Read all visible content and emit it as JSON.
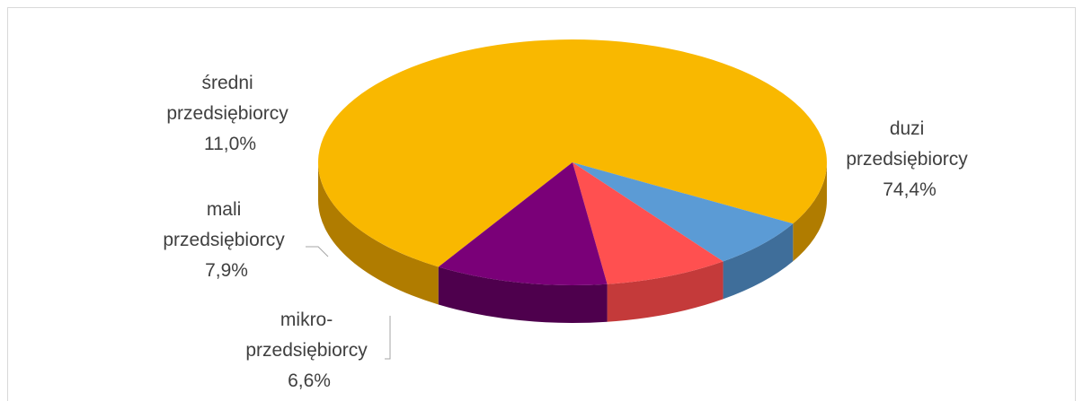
{
  "chart_data": {
    "type": "pie",
    "title": "",
    "style": "3d",
    "categories": [
      "duzi przedsiębiorcy",
      "mikro-przedsiębiorcy",
      "mali przedsiębiorcy",
      "średni przedsiębiorcy"
    ],
    "values": [
      74.4,
      6.6,
      7.9,
      11.0
    ],
    "labels": [
      {
        "lines": [
          "duzi",
          "przedsiębiorcy"
        ],
        "value_text": "74,4%"
      },
      {
        "lines": [
          "mikro-",
          "przedsiębiorcy"
        ],
        "value_text": "6,6%"
      },
      {
        "lines": [
          "mali",
          "przedsiębiorcy"
        ],
        "value_text": "7,9%"
      },
      {
        "lines": [
          "średni",
          "przedsiębiorcy"
        ],
        "value_text": "11,0%"
      }
    ],
    "colors": [
      "#F9B800",
      "#5B9BD5",
      "#FF5050",
      "#7A0078"
    ],
    "side_colors": [
      "#B07C00",
      "#3F6E9A",
      "#C43A3A",
      "#4E004D"
    ]
  }
}
